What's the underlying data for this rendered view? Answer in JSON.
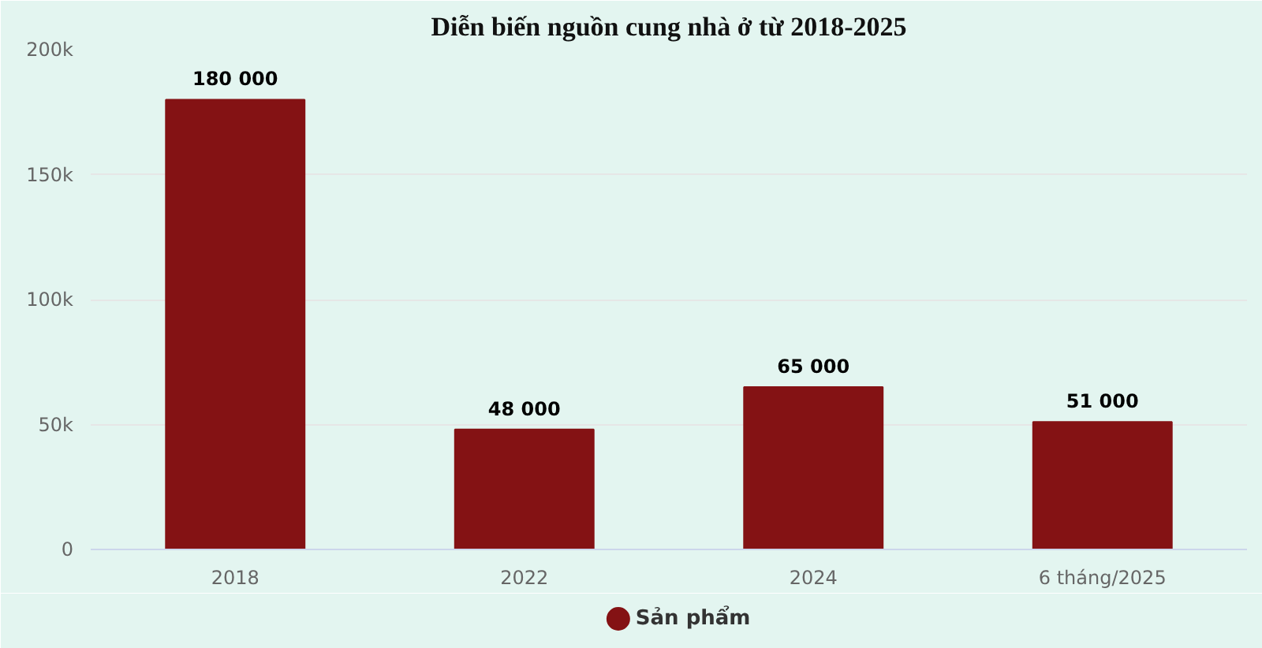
{
  "chart_data": {
    "type": "bar",
    "title": "Diễn biến nguồn cung nhà ở từ 2018-2025",
    "categories": [
      "2018",
      "2022",
      "2024",
      "6 tháng/2025"
    ],
    "series": [
      {
        "name": "Sản phẩm",
        "color": "#841214",
        "values": [
          180000,
          48000,
          65000,
          51000
        ],
        "value_labels": [
          "180 000",
          "48 000",
          "65 000",
          "51 000"
        ]
      }
    ],
    "ylim": [
      0,
      200000
    ],
    "yticks": [
      {
        "value": 0,
        "label": "0"
      },
      {
        "value": 50000,
        "label": "50k"
      },
      {
        "value": 100000,
        "label": "100k"
      },
      {
        "value": 150000,
        "label": "150k"
      },
      {
        "value": 200000,
        "label": "200k"
      }
    ],
    "grid": "y",
    "legend": "bottom",
    "marker": "circle"
  }
}
